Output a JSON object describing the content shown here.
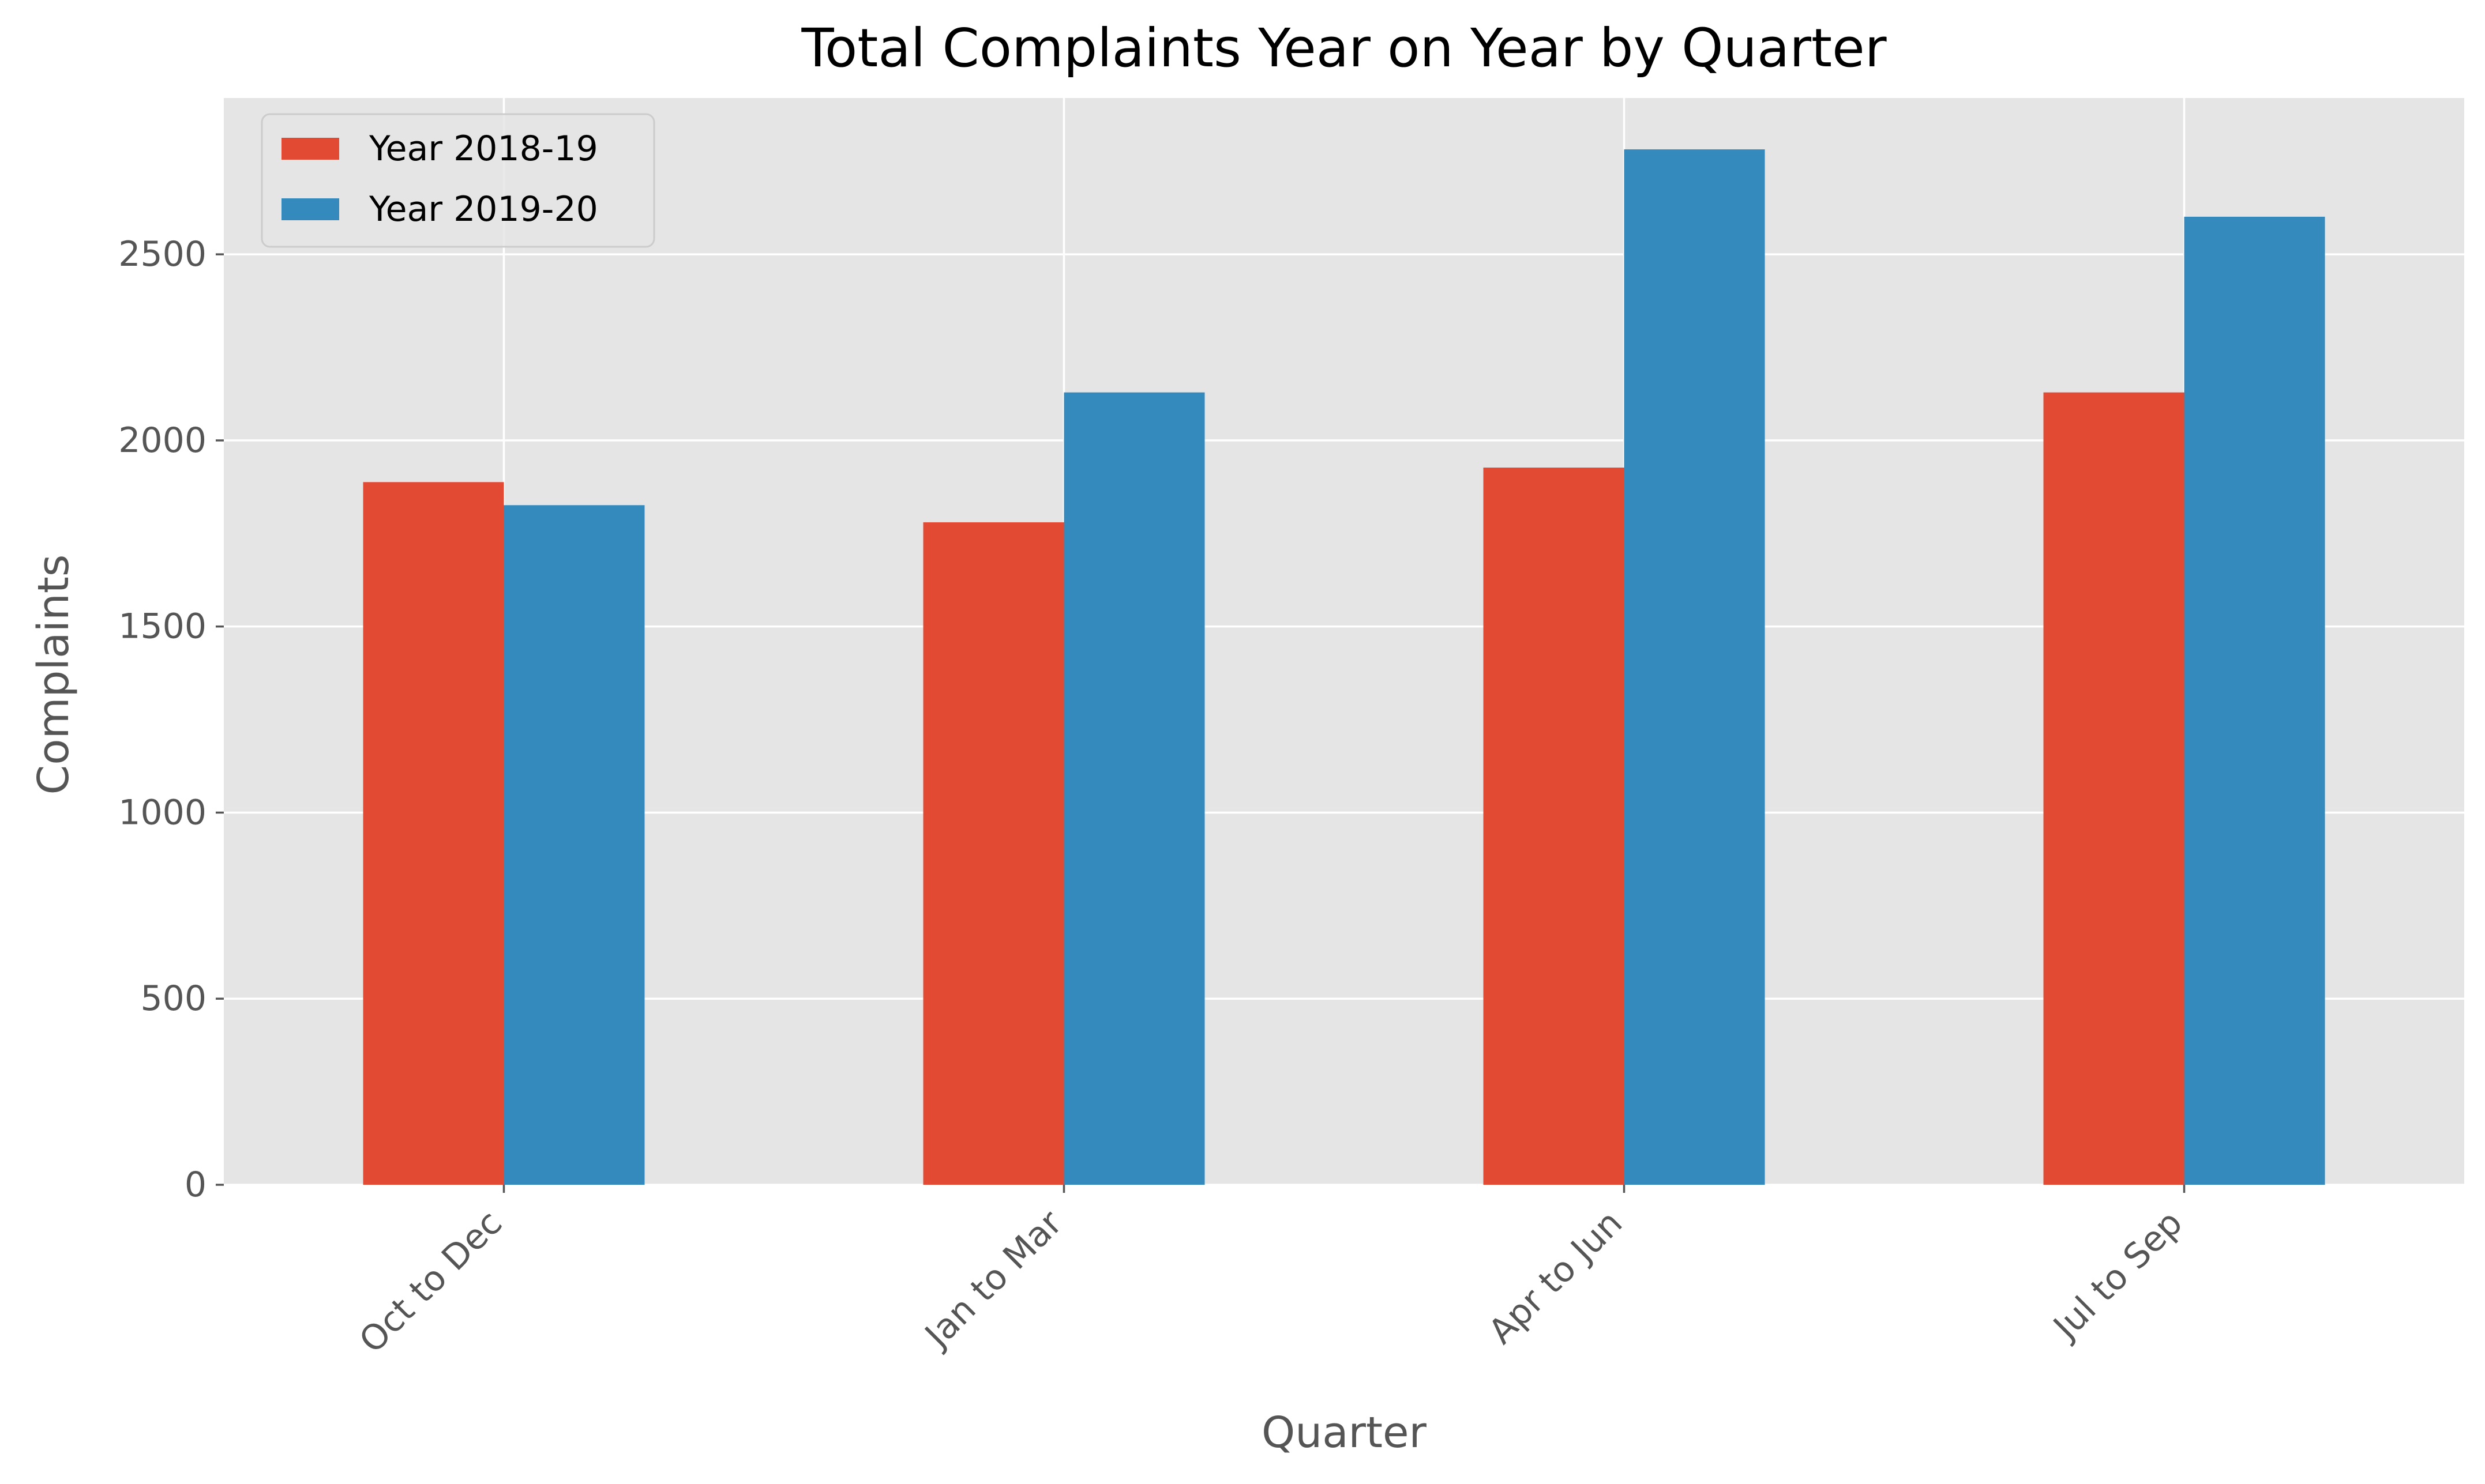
{
  "chart_data": {
    "type": "bar",
    "title": "Total Complaints Year on Year by Quarter",
    "xlabel": "Quarter",
    "ylabel": "Complaints",
    "categories": [
      "Oct to Dec",
      "Jan to Mar",
      "Apr to Jun",
      "Jul to Sep"
    ],
    "series": [
      {
        "name": "Year 2018-19",
        "color": "#e24a33",
        "values": [
          1888,
          1780,
          1927,
          2129
        ]
      },
      {
        "name": "Year 2019-20",
        "color": "#348abd",
        "values": [
          1826,
          2129,
          2782,
          2601
        ]
      }
    ],
    "ylim": [
      0,
      2920
    ],
    "yticks": [
      0,
      500,
      1000,
      1500,
      2000,
      2500
    ],
    "grid": true,
    "legend_position": "top-left",
    "background_color": "#e5e5e5",
    "grid_color": "#ffffff",
    "text_color": "#555555"
  }
}
